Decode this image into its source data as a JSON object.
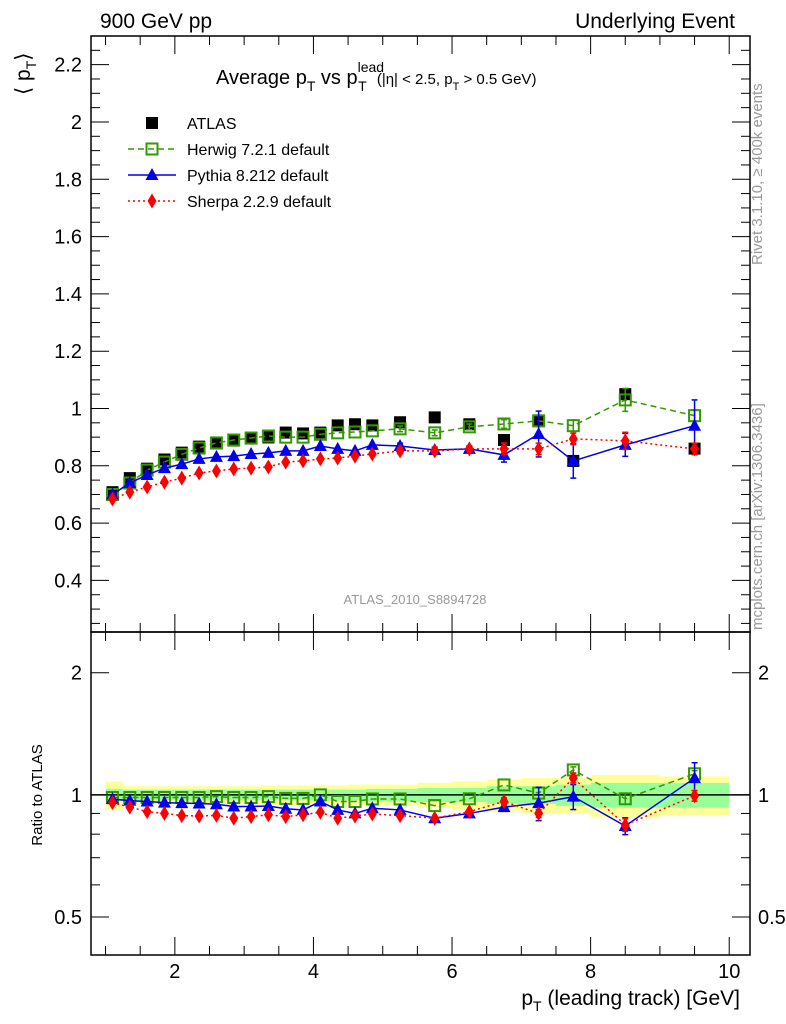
{
  "header": {
    "left": "900 GeV pp",
    "right": "Underlying Event"
  },
  "side_labels": {
    "rivet": "Rivet 3.1.10, ≥ 400k events",
    "mcplots": "mcplots.cern.ch [arXiv:1306.3436]"
  },
  "watermark": "ATLAS_2010_S8894728",
  "chart_data": [
    {
      "type": "line",
      "title_main": "Average p",
      "title_sub_T": "T",
      "title_vs": " vs p",
      "title_sup_lead": "lead",
      "title_cuts_a": " (|η| < 2.5, p",
      "title_cuts_b": " > 0.5 GeV)",
      "ylabel": "⟨ p",
      "ylabel_sub": "T",
      "ylabel_close": "⟩",
      "xlim": [
        0.79,
        10.3
      ],
      "ylim": [
        0.22,
        2.3
      ],
      "yticks": [
        0.4,
        0.6,
        0.8,
        1,
        1.2,
        1.4,
        1.6,
        1.8,
        2,
        2.2
      ],
      "ytick_labels": [
        "0.4",
        "0.6",
        "0.8",
        "1",
        "1.2",
        "1.4",
        "1.6",
        "1.8",
        "2",
        "2.2"
      ],
      "x": [
        1.1,
        1.35,
        1.6,
        1.85,
        2.1,
        2.35,
        2.6,
        2.85,
        3.1,
        3.35,
        3.6,
        3.85,
        4.1,
        4.35,
        4.6,
        4.85,
        5.25,
        5.75,
        6.25,
        6.75,
        7.25,
        7.75,
        8.5,
        9.5
      ],
      "legend_position": "top-left",
      "series": [
        {
          "name": "ATLAS",
          "color": "#000000",
          "marker": "square",
          "values": [
            0.708,
            0.757,
            0.79,
            0.822,
            0.846,
            0.867,
            0.878,
            0.888,
            0.895,
            0.899,
            0.916,
            0.913,
            0.916,
            0.941,
            0.945,
            0.941,
            0.952,
            0.969,
            0.945,
            0.89,
            0.956,
            0.817,
            1.05,
            0.86
          ]
        },
        {
          "name": "Herwig 7.2.1 default",
          "color": "#339900",
          "marker": "open-square",
          "line": "dashed",
          "values": [
            0.7,
            0.74,
            0.785,
            0.813,
            0.84,
            0.862,
            0.88,
            0.89,
            0.897,
            0.904,
            0.9,
            0.9,
            0.91,
            0.915,
            0.918,
            0.922,
            0.929,
            0.915,
            0.936,
            0.946,
            0.957,
            0.94,
            1.03,
            0.975
          ],
          "errors": [
            0,
            0,
            0,
            0,
            0,
            0,
            0,
            0,
            0,
            0,
            0,
            0,
            0,
            0,
            0,
            0,
            0.01,
            0.01,
            0.01,
            0.015,
            0.02,
            0.02,
            0.04,
            0.02
          ]
        },
        {
          "name": "Pythia 8.212 default",
          "color": "#0000ee",
          "marker": "triangle",
          "line": "solid",
          "values": [
            0.7,
            0.74,
            0.768,
            0.792,
            0.806,
            0.824,
            0.831,
            0.834,
            0.841,
            0.845,
            0.852,
            0.852,
            0.869,
            0.859,
            0.852,
            0.873,
            0.869,
            0.855,
            0.859,
            0.838,
            0.911,
            0.817,
            0.873,
            0.94
          ],
          "errors": [
            0,
            0,
            0,
            0,
            0,
            0,
            0,
            0,
            0,
            0,
            0,
            0,
            0,
            0,
            0,
            0,
            0.01,
            0.01,
            0.01,
            0.025,
            0.08,
            0.06,
            0.04,
            0.09
          ]
        },
        {
          "name": "Sherpa 2.2.9 default",
          "color": "#ff0000",
          "marker": "diamond",
          "line": "dotted",
          "values": [
            0.684,
            0.708,
            0.726,
            0.743,
            0.757,
            0.775,
            0.782,
            0.789,
            0.792,
            0.796,
            0.813,
            0.817,
            0.824,
            0.827,
            0.834,
            0.841,
            0.852,
            0.852,
            0.859,
            0.859,
            0.859,
            0.894,
            0.887,
            0.859
          ],
          "errors": [
            0,
            0,
            0,
            0,
            0,
            0,
            0,
            0,
            0,
            0,
            0,
            0,
            0,
            0,
            0,
            0,
            0.01,
            0.01,
            0.01,
            0.02,
            0.02,
            0.02,
            0.03,
            0.02
          ]
        }
      ]
    },
    {
      "type": "line",
      "ylabel": "Ratio to ATLAS",
      "xlabel": "p",
      "xlabel_sub": "T",
      "xlabel_rest": " (leading track) [GeV]",
      "yscale": "log",
      "xlim": [
        0.79,
        10.3
      ],
      "ylim": [
        0.403,
        2.52
      ],
      "yticks": [
        0.5,
        1,
        2
      ],
      "ytick_labels": [
        "0.5",
        "1",
        "2"
      ],
      "xticks": [
        2,
        4,
        6,
        8,
        10
      ],
      "xtick_labels": [
        "2",
        "4",
        "6",
        "8",
        "10"
      ],
      "x_edges": [
        1,
        1.25,
        1.5,
        1.75,
        2,
        2.25,
        2.5,
        2.75,
        3,
        3.25,
        3.5,
        3.75,
        4,
        4.25,
        4.5,
        4.75,
        5,
        5.5,
        6,
        6.5,
        7,
        7.5,
        8,
        9,
        10
      ],
      "band_inner": [
        0.035,
        0.03,
        0.03,
        0.03,
        0.03,
        0.03,
        0.03,
        0.03,
        0.03,
        0.03,
        0.03,
        0.03,
        0.03,
        0.03,
        0.03,
        0.035,
        0.035,
        0.04,
        0.04,
        0.05,
        0.05,
        0.06,
        0.07,
        0.07
      ],
      "band_outer": [
        0.08,
        0.05,
        0.05,
        0.05,
        0.05,
        0.05,
        0.05,
        0.05,
        0.05,
        0.055,
        0.055,
        0.055,
        0.055,
        0.055,
        0.06,
        0.06,
        0.06,
        0.07,
        0.08,
        0.09,
        0.1,
        0.1,
        0.12,
        0.11
      ],
      "series": [
        {
          "name": "Herwig 7.2.1 default",
          "values": [
            0.985,
            0.985,
            0.985,
            0.985,
            0.985,
            0.985,
            0.99,
            0.985,
            0.985,
            0.99,
            0.98,
            0.98,
            1.0,
            0.963,
            0.963,
            0.977,
            0.977,
            0.941,
            0.978,
            1.058,
            1.01,
            1.152,
            0.978,
            1.127
          ],
          "errors": [
            0,
            0,
            0,
            0,
            0,
            0,
            0,
            0,
            0,
            0,
            0,
            0,
            0,
            0,
            0,
            0,
            0,
            0,
            0,
            0,
            0,
            0.02,
            0.03,
            0.02
          ]
        },
        {
          "name": "Pythia 8.212 default",
          "values": [
            0.976,
            0.968,
            0.963,
            0.957,
            0.954,
            0.952,
            0.948,
            0.936,
            0.936,
            0.939,
            0.924,
            0.918,
            0.963,
            0.918,
            0.9,
            0.927,
            0.918,
            0.876,
            0.9,
            0.933,
            0.954,
            0.99,
            0.838,
            1.1
          ],
          "errors": [
            0,
            0,
            0,
            0,
            0,
            0,
            0,
            0,
            0,
            0,
            0,
            0,
            0,
            0,
            0,
            0,
            0,
            0,
            0,
            0.02,
            0.09,
            0.07,
            0.04,
            0.1
          ]
        },
        {
          "name": "Sherpa 2.2.9 default",
          "values": [
            0.957,
            0.933,
            0.909,
            0.9,
            0.889,
            0.887,
            0.89,
            0.876,
            0.884,
            0.893,
            0.884,
            0.893,
            0.906,
            0.876,
            0.887,
            0.897,
            0.889,
            0.876,
            0.909,
            0.963,
            0.9,
            1.1,
            0.843,
            0.995
          ],
          "errors": [
            0,
            0,
            0,
            0,
            0,
            0,
            0,
            0,
            0,
            0,
            0,
            0,
            0,
            0,
            0,
            0,
            0,
            0,
            0,
            0.02,
            0.02,
            0.03,
            0.03,
            0.03
          ]
        }
      ]
    }
  ]
}
